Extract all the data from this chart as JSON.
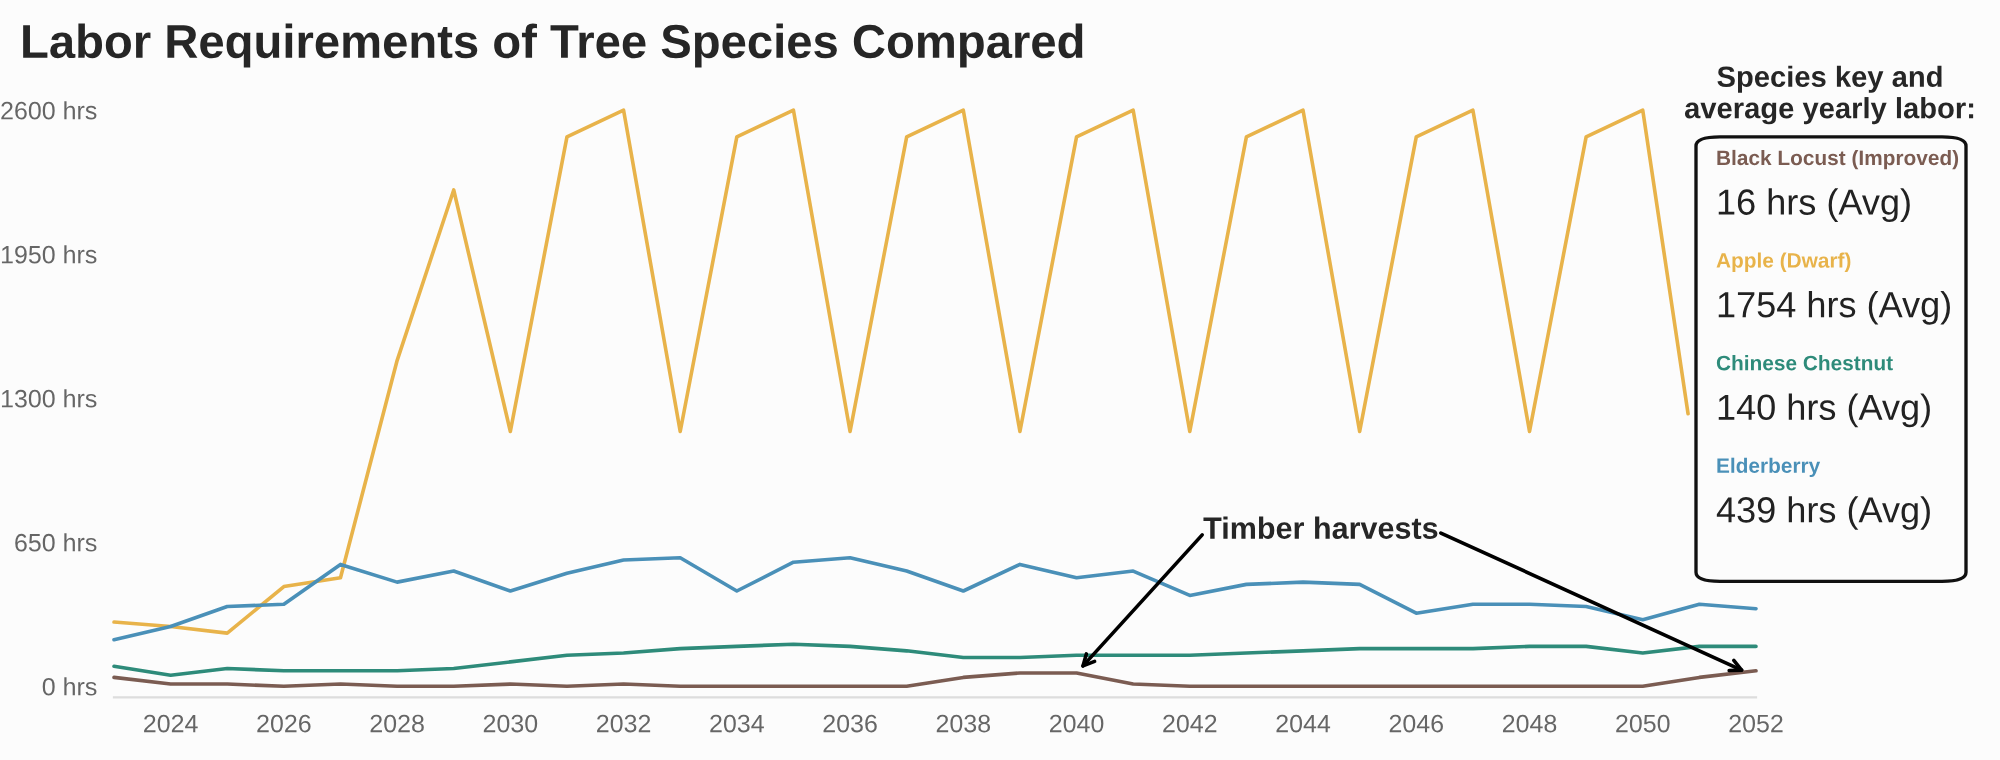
{
  "chart_data": {
    "type": "line",
    "title": "Labor Requirements of Tree Species Compared",
    "legend_title": "Species key and average yearly labor:",
    "x": [
      2023,
      2024,
      2025,
      2026,
      2027,
      2028,
      2029,
      2030,
      2031,
      2032,
      2033,
      2034,
      2035,
      2036,
      2037,
      2038,
      2039,
      2040,
      2041,
      2042,
      2043,
      2044,
      2045,
      2046,
      2047,
      2048,
      2049,
      2050,
      2051,
      2052
    ],
    "series": [
      {
        "name": "Black Locust (Improved)",
        "color": "#7b5c52",
        "values": [
          40,
          10,
          10,
          0,
          10,
          0,
          0,
          10,
          0,
          10,
          0,
          0,
          0,
          0,
          0,
          40,
          60,
          60,
          10,
          0,
          0,
          0,
          0,
          0,
          0,
          0,
          0,
          0,
          40,
          70
        ]
      },
      {
        "name": "Apple (Dwarf)",
        "color": "#e8b34a",
        "x": [
          2023,
          2024,
          2025,
          2026,
          2027,
          2028,
          2029,
          2030,
          2031,
          2032,
          2033,
          2034,
          2035,
          2036,
          2037,
          2038,
          2039,
          2040,
          2041,
          2042,
          2043,
          2044,
          2045,
          2046,
          2047,
          2048,
          2049,
          2050,
          2050.8
        ],
        "values": [
          290,
          270,
          240,
          450,
          490,
          1470,
          2240,
          1150,
          2480,
          2600,
          1150,
          2480,
          2600,
          1150,
          2480,
          2600,
          1150,
          2480,
          2600,
          1150,
          2480,
          2600,
          1150,
          2480,
          2600,
          1150,
          2480,
          2600,
          1230
        ]
      },
      {
        "name": "Chinese Chestnut",
        "color": "#2e8b7a",
        "values": [
          90,
          50,
          80,
          70,
          70,
          70,
          80,
          110,
          140,
          150,
          170,
          180,
          190,
          180,
          160,
          130,
          130,
          140,
          140,
          140,
          150,
          160,
          170,
          170,
          170,
          180,
          180,
          150,
          180,
          180
        ]
      },
      {
        "name": "Elderberry",
        "color": "#4a90b8",
        "values": [
          210,
          270,
          360,
          370,
          550,
          470,
          520,
          430,
          510,
          570,
          580,
          430,
          560,
          580,
          520,
          430,
          550,
          490,
          520,
          410,
          460,
          470,
          460,
          330,
          370,
          370,
          360,
          300,
          370,
          350
        ]
      }
    ],
    "xlim": [
      2023,
      2052
    ],
    "xticks": [
      2024,
      2026,
      2028,
      2030,
      2032,
      2034,
      2036,
      2038,
      2040,
      2042,
      2044,
      2046,
      2048,
      2050,
      2052
    ],
    "ylim": [
      0,
      2600
    ],
    "yticks": [
      {
        "value": 0,
        "label": "0 hrs"
      },
      {
        "value": 650,
        "label": "650 hrs"
      },
      {
        "value": 1300,
        "label": "1300 hrs"
      },
      {
        "value": 1950,
        "label": "1950 hrs"
      },
      {
        "value": 2600,
        "label": "2600 hrs"
      }
    ],
    "annotations": [
      "16 hrs (Avg)",
      "1754 hrs (Avg)",
      "140 hrs (Avg)",
      "439 hrs (Avg)",
      {
        "text": "Timber harvests",
        "x": 2040,
        "y": 60
      }
    ],
    "legend": "right",
    "grid": false,
    "marker": "none",
    "line_style": "solid"
  }
}
